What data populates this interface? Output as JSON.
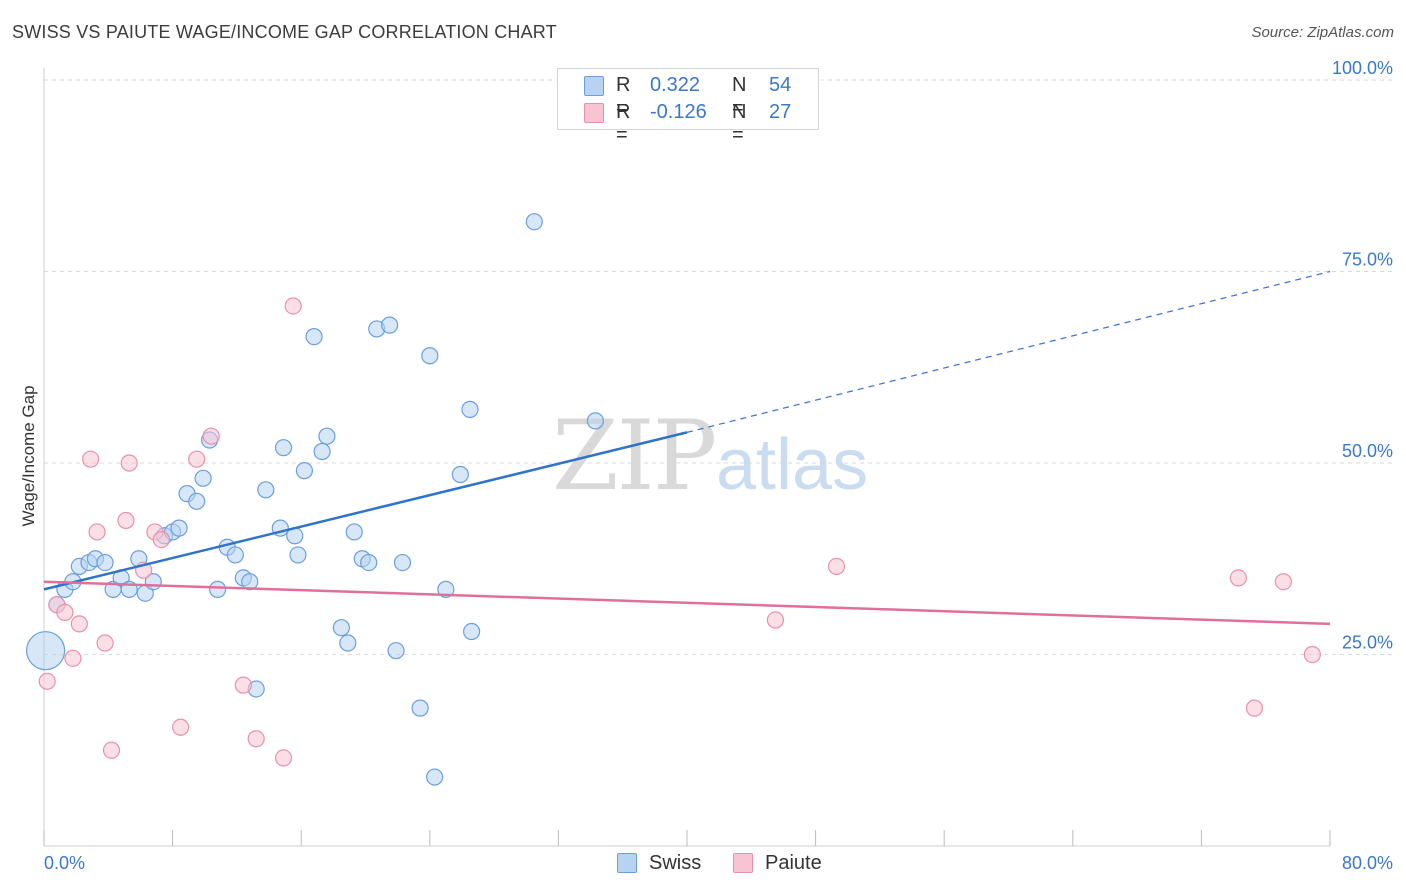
{
  "title": "SWISS VS PAIUTE WAGE/INCOME GAP CORRELATION CHART",
  "source": "Source: ZipAtlas.com",
  "watermark": {
    "zip": "ZIP",
    "atlas": "atlas"
  },
  "colors": {
    "swiss_fill": "#b8d3f2",
    "swiss_stroke": "#6a9fdc",
    "swiss_line": "#2f73cc",
    "paiute_fill": "#f8c4d4",
    "paiute_stroke": "#e891ad",
    "paiute_line": "#e0709a",
    "axis_text": "#3b78c8",
    "grid": "#d9d9d9"
  },
  "legend_top": [
    {
      "r_label": "R =",
      "r_value": "0.322",
      "n_label": "N =",
      "n_value": "54"
    },
    {
      "r_label": "R =",
      "r_value": "-0.126",
      "n_label": "N =",
      "n_value": "27"
    }
  ],
  "legend_bottom": [
    "Swiss",
    "Paiute"
  ],
  "chart_data": {
    "type": "scatter",
    "title": "SWISS VS PAIUTE WAGE/INCOME GAP CORRELATION CHART",
    "xlabel": "",
    "ylabel": "Wage/Income Gap",
    "xlim": [
      0,
      80
    ],
    "ylim": [
      0,
      100
    ],
    "x_tick_labels": [
      "0.0%",
      "80.0%"
    ],
    "y_tick_labels": [
      "100.0%",
      "75.0%",
      "50.0%",
      "25.0%"
    ],
    "y_ticks": [
      100,
      75,
      50,
      25
    ],
    "grid": true,
    "legend_placement": "top-center",
    "series": [
      {
        "name": "Swiss",
        "r": 0.322,
        "n": 54,
        "trend": {
          "x": [
            0,
            40
          ],
          "y": [
            33.5,
            54
          ],
          "dashed_to": [
            80,
            75
          ]
        },
        "points": [
          [
            0.1,
            25.5
          ],
          [
            0.8,
            31.5
          ],
          [
            1.3,
            33.5
          ],
          [
            1.8,
            34.5
          ],
          [
            2.2,
            36.5
          ],
          [
            2.8,
            37.0
          ],
          [
            3.2,
            37.5
          ],
          [
            3.8,
            37.0
          ],
          [
            4.3,
            33.5
          ],
          [
            4.8,
            35.0
          ],
          [
            5.3,
            33.5
          ],
          [
            5.9,
            37.5
          ],
          [
            6.3,
            33.0
          ],
          [
            6.8,
            34.5
          ],
          [
            7.5,
            40.5
          ],
          [
            8.0,
            41.0
          ],
          [
            8.4,
            41.5
          ],
          [
            8.9,
            46.0
          ],
          [
            9.5,
            45.0
          ],
          [
            9.9,
            48.0
          ],
          [
            10.3,
            53.0
          ],
          [
            10.8,
            33.5
          ],
          [
            11.4,
            39.0
          ],
          [
            11.9,
            38.0
          ],
          [
            12.4,
            35.0
          ],
          [
            12.8,
            34.5
          ],
          [
            13.2,
            20.5
          ],
          [
            13.8,
            46.5
          ],
          [
            14.7,
            41.5
          ],
          [
            14.9,
            52.0
          ],
          [
            15.6,
            40.5
          ],
          [
            15.8,
            38.0
          ],
          [
            16.2,
            49.0
          ],
          [
            16.8,
            66.5
          ],
          [
            17.3,
            51.5
          ],
          [
            17.6,
            53.5
          ],
          [
            18.5,
            28.5
          ],
          [
            18.9,
            26.5
          ],
          [
            19.3,
            41.0
          ],
          [
            19.8,
            37.5
          ],
          [
            20.2,
            37.0
          ],
          [
            20.7,
            67.5
          ],
          [
            21.5,
            68.0
          ],
          [
            21.9,
            25.5
          ],
          [
            22.3,
            37.0
          ],
          [
            23.4,
            18.0
          ],
          [
            24.0,
            64.0
          ],
          [
            24.3,
            9.0
          ],
          [
            25.0,
            33.5
          ],
          [
            25.9,
            48.5
          ],
          [
            26.5,
            57.0
          ],
          [
            26.6,
            28.0
          ],
          [
            30.5,
            81.5
          ],
          [
            34.3,
            55.5
          ]
        ]
      },
      {
        "name": "Paiute",
        "r": -0.126,
        "n": 27,
        "trend": {
          "x": [
            0,
            80
          ],
          "y": [
            34.5,
            29.0
          ]
        },
        "points": [
          [
            0.2,
            21.5
          ],
          [
            0.8,
            31.5
          ],
          [
            1.3,
            30.5
          ],
          [
            1.8,
            24.5
          ],
          [
            2.2,
            29.0
          ],
          [
            2.9,
            50.5
          ],
          [
            3.3,
            41.0
          ],
          [
            3.8,
            26.5
          ],
          [
            4.2,
            12.5
          ],
          [
            5.1,
            42.5
          ],
          [
            5.3,
            50.0
          ],
          [
            6.2,
            36.0
          ],
          [
            6.9,
            41.0
          ],
          [
            7.3,
            40.0
          ],
          [
            8.5,
            15.5
          ],
          [
            9.5,
            50.5
          ],
          [
            10.4,
            53.5
          ],
          [
            12.4,
            21.0
          ],
          [
            13.2,
            14.0
          ],
          [
            14.9,
            11.5
          ],
          [
            15.5,
            70.5
          ],
          [
            45.5,
            29.5
          ],
          [
            49.3,
            36.5
          ],
          [
            74.3,
            35.0
          ],
          [
            75.3,
            18.0
          ],
          [
            77.1,
            34.5
          ],
          [
            78.9,
            25.0
          ]
        ]
      }
    ]
  }
}
